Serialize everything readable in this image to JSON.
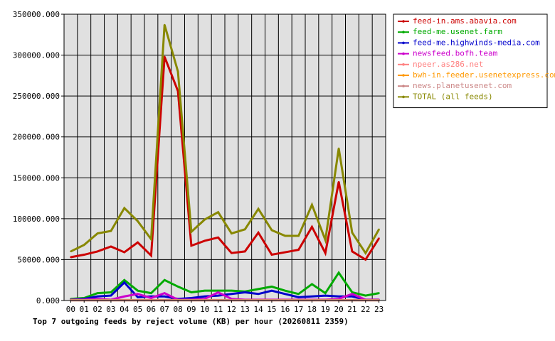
{
  "chart_data": {
    "type": "line",
    "title": "Top 7 outgoing feeds by reject volume (KB) per hour (20260811 2359)",
    "xlabel": "",
    "ylabel": "",
    "ylim": [
      0,
      350000
    ],
    "y_ticks": [
      {
        "value": 0,
        "label": "0.000"
      },
      {
        "value": 50000,
        "label": "50000.000"
      },
      {
        "value": 100000,
        "label": "100000.000"
      },
      {
        "value": 150000,
        "label": "150000.000"
      },
      {
        "value": 200000,
        "label": "200000.000"
      },
      {
        "value": 250000,
        "label": "250000.000"
      },
      {
        "value": 300000,
        "label": "300000.000"
      },
      {
        "value": 350000,
        "label": "350000.000"
      }
    ],
    "grid": true,
    "legend_position": "top-right",
    "plot_background": "#e0e0e0",
    "categories": [
      "00",
      "01",
      "02",
      "03",
      "04",
      "05",
      "06",
      "07",
      "08",
      "09",
      "10",
      "11",
      "12",
      "13",
      "14",
      "15",
      "16",
      "17",
      "18",
      "19",
      "20",
      "21",
      "22",
      "23"
    ],
    "series": [
      {
        "name": "feed-in.ams.abavia.com",
        "color": "#cc0000",
        "values": [
          53000,
          56000,
          60000,
          66000,
          59000,
          71000,
          55000,
          298000,
          256000,
          67000,
          73000,
          77000,
          58000,
          60000,
          83000,
          56000,
          59000,
          62000,
          90000,
          58000,
          145000,
          60000,
          50000,
          76000
        ]
      },
      {
        "name": "feed-me.usenet.farm",
        "color": "#00aa00",
        "values": [
          2000,
          3000,
          9000,
          10000,
          25000,
          12000,
          9000,
          25000,
          17000,
          10000,
          12000,
          12000,
          12000,
          11000,
          14000,
          17000,
          12000,
          8000,
          20000,
          9000,
          34000,
          10000,
          6000,
          9000
        ]
      },
      {
        "name": "feed-me.highwinds-media.com",
        "color": "#0000cc",
        "values": [
          1000,
          2000,
          5000,
          6000,
          22000,
          4000,
          5000,
          5000,
          2000,
          3000,
          5000,
          6000,
          8000,
          10000,
          8000,
          12000,
          8000,
          4000,
          5000,
          6000,
          5000,
          5000,
          1000,
          1000
        ]
      },
      {
        "name": "newsfeed.bofh.team",
        "color": "#cc00cc",
        "values": [
          1000,
          1000,
          2000,
          1000,
          5000,
          8000,
          3000,
          9000,
          1000,
          1000,
          2000,
          10000,
          2000,
          1000,
          1000,
          1000,
          1000,
          1000,
          1000,
          1000,
          2000,
          8000,
          1000,
          1000
        ]
      },
      {
        "name": "npeer.as286.net",
        "color": "#ff8080",
        "values": [
          500,
          500,
          500,
          500,
          500,
          500,
          500,
          500,
          500,
          500,
          500,
          500,
          500,
          500,
          500,
          500,
          500,
          500,
          500,
          500,
          500,
          500,
          500,
          500
        ]
      },
      {
        "name": "bwh-in.feeder.usenetexpress.com",
        "color": "#ff9900",
        "values": [
          300,
          300,
          300,
          300,
          300,
          300,
          300,
          300,
          300,
          300,
          300,
          300,
          300,
          300,
          300,
          300,
          300,
          300,
          300,
          300,
          300,
          300,
          300,
          300
        ]
      },
      {
        "name": "news.planetusenet.com",
        "color": "#cc8888",
        "values": [
          200,
          200,
          200,
          200,
          200,
          200,
          200,
          200,
          200,
          200,
          200,
          200,
          200,
          200,
          200,
          200,
          200,
          200,
          200,
          200,
          200,
          200,
          200,
          200
        ]
      },
      {
        "name": "TOTAL (all feeds)",
        "color": "#888800",
        "values": [
          60000,
          68000,
          82000,
          85000,
          113000,
          97000,
          75000,
          337000,
          280000,
          84000,
          99000,
          108000,
          82000,
          87000,
          112000,
          86000,
          79000,
          79000,
          117000,
          74000,
          186000,
          83000,
          58000,
          87000
        ]
      }
    ]
  }
}
